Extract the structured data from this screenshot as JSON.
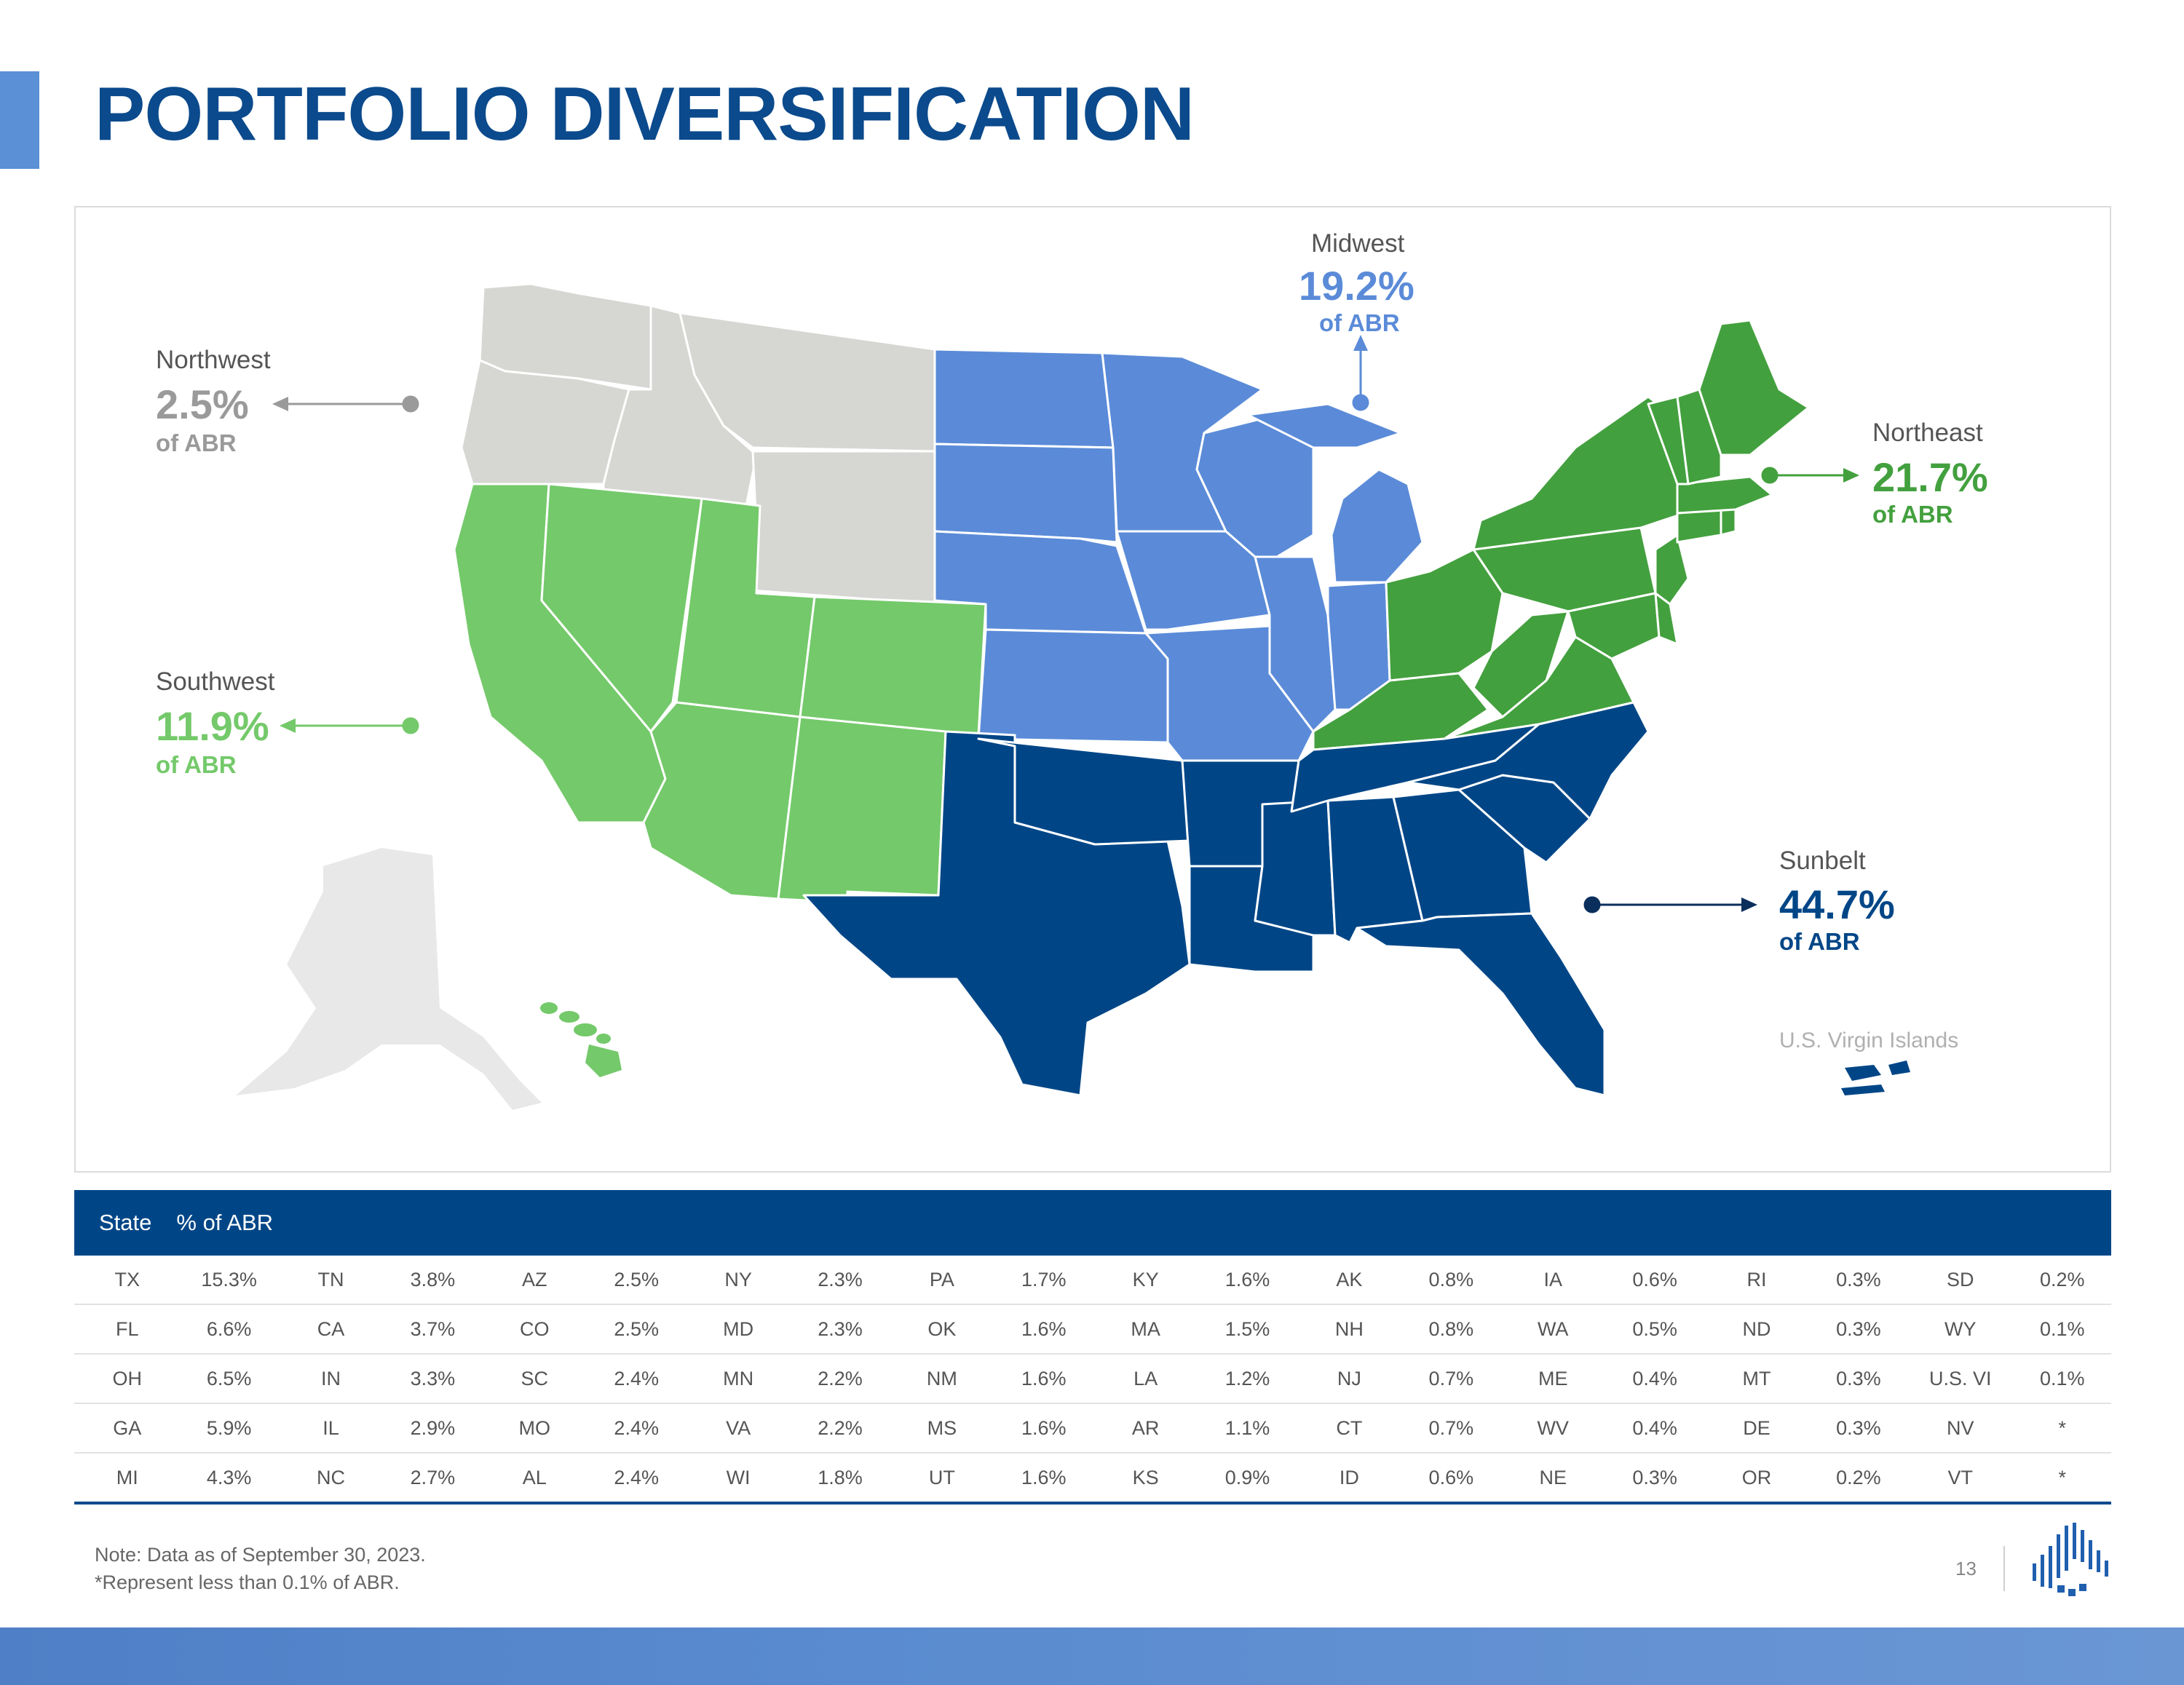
{
  "title": "PORTFOLIO DIVERSIFICATION",
  "colors": {
    "northwest": "#d6d6d3",
    "southwest": "#74c96a",
    "midwest": "#5b8bd8",
    "northeast": "#43a03e",
    "sunbelt": "#004687",
    "alaska": "#e8e8e8",
    "title": "#0b4a8c",
    "table_header": "#004687"
  },
  "regions": {
    "northwest": {
      "name": "Northwest",
      "pct": "2.5%",
      "sub": "of ABR"
    },
    "southwest": {
      "name": "Southwest",
      "pct": "11.9%",
      "sub": "of ABR"
    },
    "midwest": {
      "name": "Midwest",
      "pct": "19.2%",
      "sub": "of ABR"
    },
    "northeast": {
      "name": "Northeast",
      "pct": "21.7%",
      "sub": "of ABR"
    },
    "sunbelt": {
      "name": "Sunbelt",
      "pct": "44.7%",
      "sub": "of ABR"
    }
  },
  "virgin_islands_label": "U.S. Virgin Islands",
  "table": {
    "header": {
      "state": "State",
      "abr": "% of ABR"
    },
    "rows": [
      [
        [
          "TX",
          "15.3%"
        ],
        [
          "TN",
          "3.8%"
        ],
        [
          "AZ",
          "2.5%"
        ],
        [
          "NY",
          "2.3%"
        ],
        [
          "PA",
          "1.7%"
        ],
        [
          "KY",
          "1.6%"
        ],
        [
          "AK",
          "0.8%"
        ],
        [
          "IA",
          "0.6%"
        ],
        [
          "RI",
          "0.3%"
        ],
        [
          "SD",
          "0.2%"
        ]
      ],
      [
        [
          "FL",
          "6.6%"
        ],
        [
          "CA",
          "3.7%"
        ],
        [
          "CO",
          "2.5%"
        ],
        [
          "MD",
          "2.3%"
        ],
        [
          "OK",
          "1.6%"
        ],
        [
          "MA",
          "1.5%"
        ],
        [
          "NH",
          "0.8%"
        ],
        [
          "WA",
          "0.5%"
        ],
        [
          "ND",
          "0.3%"
        ],
        [
          "WY",
          "0.1%"
        ]
      ],
      [
        [
          "OH",
          "6.5%"
        ],
        [
          "IN",
          "3.3%"
        ],
        [
          "SC",
          "2.4%"
        ],
        [
          "MN",
          "2.2%"
        ],
        [
          "NM",
          "1.6%"
        ],
        [
          "LA",
          "1.2%"
        ],
        [
          "NJ",
          "0.7%"
        ],
        [
          "ME",
          "0.4%"
        ],
        [
          "MT",
          "0.3%"
        ],
        [
          "U.S. VI",
          "0.1%"
        ]
      ],
      [
        [
          "GA",
          "5.9%"
        ],
        [
          "IL",
          "2.9%"
        ],
        [
          "MO",
          "2.4%"
        ],
        [
          "VA",
          "2.2%"
        ],
        [
          "MS",
          "1.6%"
        ],
        [
          "AR",
          "1.1%"
        ],
        [
          "CT",
          "0.7%"
        ],
        [
          "WV",
          "0.4%"
        ],
        [
          "DE",
          "0.3%"
        ],
        [
          "NV",
          "*"
        ]
      ],
      [
        [
          "MI",
          "4.3%"
        ],
        [
          "NC",
          "2.7%"
        ],
        [
          "AL",
          "2.4%"
        ],
        [
          "WI",
          "1.8%"
        ],
        [
          "UT",
          "1.6%"
        ],
        [
          "KS",
          "0.9%"
        ],
        [
          "ID",
          "0.6%"
        ],
        [
          "NE",
          "0.3%"
        ],
        [
          "OR",
          "0.2%"
        ],
        [
          "VT",
          "*"
        ]
      ]
    ]
  },
  "notes": [
    "Note: Data as of September 30, 2023.",
    "*Represent less than 0.1% of ABR."
  ],
  "page_number": "13"
}
